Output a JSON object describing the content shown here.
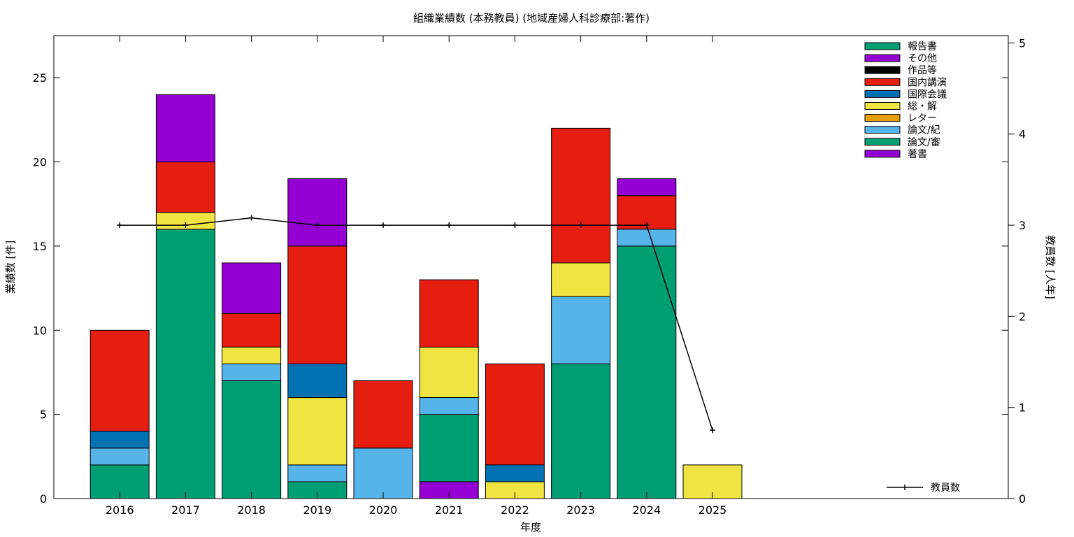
{
  "chart_data": {
    "type": "bar",
    "stacked": true,
    "title": "組織業績数 (本務教員) (地域産婦人科診療部:著作)",
    "xlabel": "年度",
    "ylabel": "業績数 [件]",
    "y2label": "教員数 [人年]",
    "categories": [
      "2016",
      "2017",
      "2018",
      "2019",
      "2020",
      "2021",
      "2022",
      "2023",
      "2024",
      "2025"
    ],
    "ylim": [
      0,
      27.5
    ],
    "y2lim": [
      0,
      5.08
    ],
    "yticks": [
      "0",
      "5",
      "10",
      "15",
      "20",
      "25"
    ],
    "y2ticks": [
      "0",
      "1",
      "2",
      "3",
      "4",
      "5"
    ],
    "grid": false,
    "legend_position": "top-right",
    "series": [
      {
        "name": "著書",
        "color": "#9400d3",
        "values": [
          0,
          0,
          0,
          0,
          0,
          1,
          0,
          0,
          0,
          0
        ]
      },
      {
        "name": "論文/審",
        "color": "#009e73",
        "values": [
          2,
          16,
          7,
          1,
          0,
          4,
          0,
          8,
          15,
          0
        ]
      },
      {
        "name": "論文/紀",
        "color": "#56b4e9",
        "values": [
          1,
          0,
          1,
          1,
          3,
          1,
          0,
          4,
          1,
          0
        ]
      },
      {
        "name": "レター",
        "color": "#e69f00",
        "values": [
          0,
          0,
          0,
          0,
          0,
          0,
          0,
          0,
          0,
          0
        ]
      },
      {
        "name": "総・解",
        "color": "#f0e442",
        "values": [
          0,
          1,
          1,
          4,
          0,
          3,
          1,
          2,
          0,
          2
        ]
      },
      {
        "name": "国際会議",
        "color": "#0072b2",
        "values": [
          1,
          0,
          0,
          2,
          0,
          0,
          1,
          0,
          0,
          0
        ]
      },
      {
        "name": "国内講演",
        "color": "#e51e10",
        "values": [
          6,
          3,
          2,
          7,
          4,
          4,
          6,
          8,
          2,
          0
        ]
      },
      {
        "name": "作品等",
        "color": "#000000",
        "values": [
          0,
          0,
          0,
          0,
          0,
          0,
          0,
          0,
          0,
          0
        ]
      },
      {
        "name": "その他",
        "color": "#9400d3",
        "values": [
          0,
          4,
          3,
          4,
          0,
          0,
          0,
          0,
          1,
          0
        ]
      },
      {
        "name": "報告書",
        "color": "#009e73",
        "values": [
          0,
          0,
          0,
          0,
          0,
          0,
          0,
          0,
          0,
          0
        ]
      }
    ],
    "line_series": {
      "name": "教員数",
      "axis": "right",
      "color": "#000000",
      "values": [
        3,
        3,
        3.08,
        3,
        3,
        3,
        3,
        3,
        3,
        0.75
      ]
    }
  }
}
